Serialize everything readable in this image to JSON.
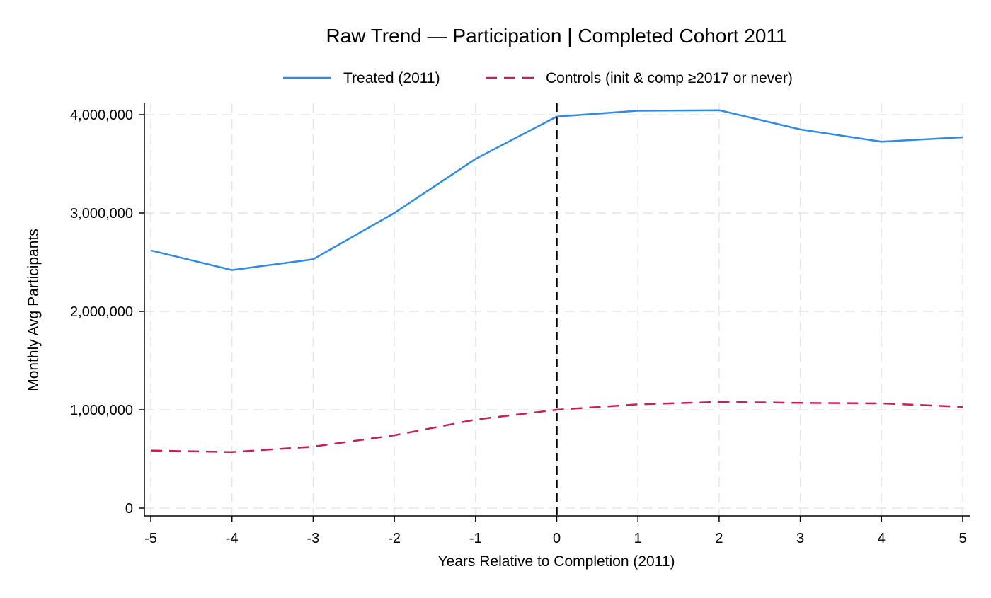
{
  "chart_data": {
    "type": "line",
    "title": "Raw Trend — Participation | Completed Cohort 2011",
    "xlabel": "Years Relative to Completion (2011)",
    "ylabel": "Monthly Avg Participants",
    "x": [
      -5,
      -4,
      -3,
      -2,
      -1,
      0,
      1,
      2,
      3,
      4,
      5
    ],
    "x_ticks": [
      "-5",
      "-4",
      "-3",
      "-2",
      "-1",
      "0",
      "1",
      "2",
      "3",
      "4",
      "5"
    ],
    "y_ticks": [
      "0",
      "1,000,000",
      "2,000,000",
      "3,000,000",
      "4,000,000"
    ],
    "y_tick_values": [
      0,
      1000000,
      2000000,
      3000000,
      4000000
    ],
    "xlim": [
      -5,
      5
    ],
    "ylim": [
      0,
      4000000
    ],
    "grid": true,
    "legend_position": "top",
    "reference_line": {
      "x": 0,
      "style": "dashed",
      "color": "#000000"
    },
    "series": [
      {
        "name": "Treated (2011)",
        "color": "#2e8ae6",
        "style": "solid",
        "values": [
          2620000,
          2420000,
          2530000,
          3000000,
          3550000,
          3980000,
          4040000,
          4045000,
          3850000,
          3725000,
          3770000
        ]
      },
      {
        "name": "Controls (init & comp ≥2017 or never)",
        "color": "#c81e5a",
        "style": "dashed",
        "values": [
          585000,
          570000,
          625000,
          740000,
          900000,
          1000000,
          1055000,
          1080000,
          1070000,
          1065000,
          1030000
        ]
      }
    ]
  }
}
